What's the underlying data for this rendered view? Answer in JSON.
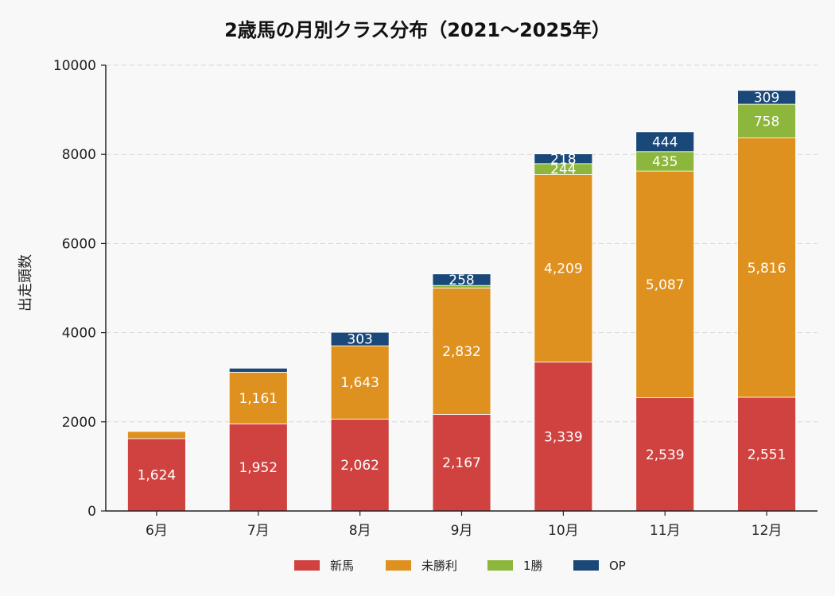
{
  "chart_data": {
    "type": "bar",
    "stacked": true,
    "title": "2歳馬の月別クラス分布（2021〜2025年）",
    "xlabel": "",
    "ylabel": "出走頭数",
    "ylim": [
      0,
      10000
    ],
    "yticks": [
      0,
      2000,
      4000,
      6000,
      8000,
      10000
    ],
    "grid": "horizontal dashed",
    "legend_position": "bottom-center",
    "categories": [
      "6月",
      "7月",
      "8月",
      "9月",
      "10月",
      "11月",
      "12月"
    ],
    "series": [
      {
        "name": "新馬",
        "color": "#d0423f",
        "values": [
          1624,
          1952,
          2062,
          2167,
          3339,
          2539,
          2551
        ],
        "labels": [
          "1,624",
          "1,952",
          "2,062",
          "2,167",
          "3,339",
          "2,539",
          "2,551"
        ]
      },
      {
        "name": "未勝利",
        "color": "#df9120",
        "values": [
          160,
          1161,
          1643,
          2832,
          4209,
          5087,
          5816
        ],
        "labels": [
          "",
          "1,161",
          "1,643",
          "2,832",
          "4,209",
          "5,087",
          "5,816"
        ]
      },
      {
        "name": "1勝",
        "color": "#8db63c",
        "values": [
          0,
          0,
          0,
          60,
          244,
          435,
          758
        ],
        "labels": [
          "",
          "",
          "",
          "",
          "244",
          "435",
          "758"
        ]
      },
      {
        "name": "OP",
        "color": "#1a4879",
        "values": [
          0,
          90,
          303,
          258,
          218,
          444,
          309
        ],
        "labels": [
          "",
          "",
          "303",
          "258",
          "218",
          "444",
          "309"
        ]
      }
    ]
  }
}
